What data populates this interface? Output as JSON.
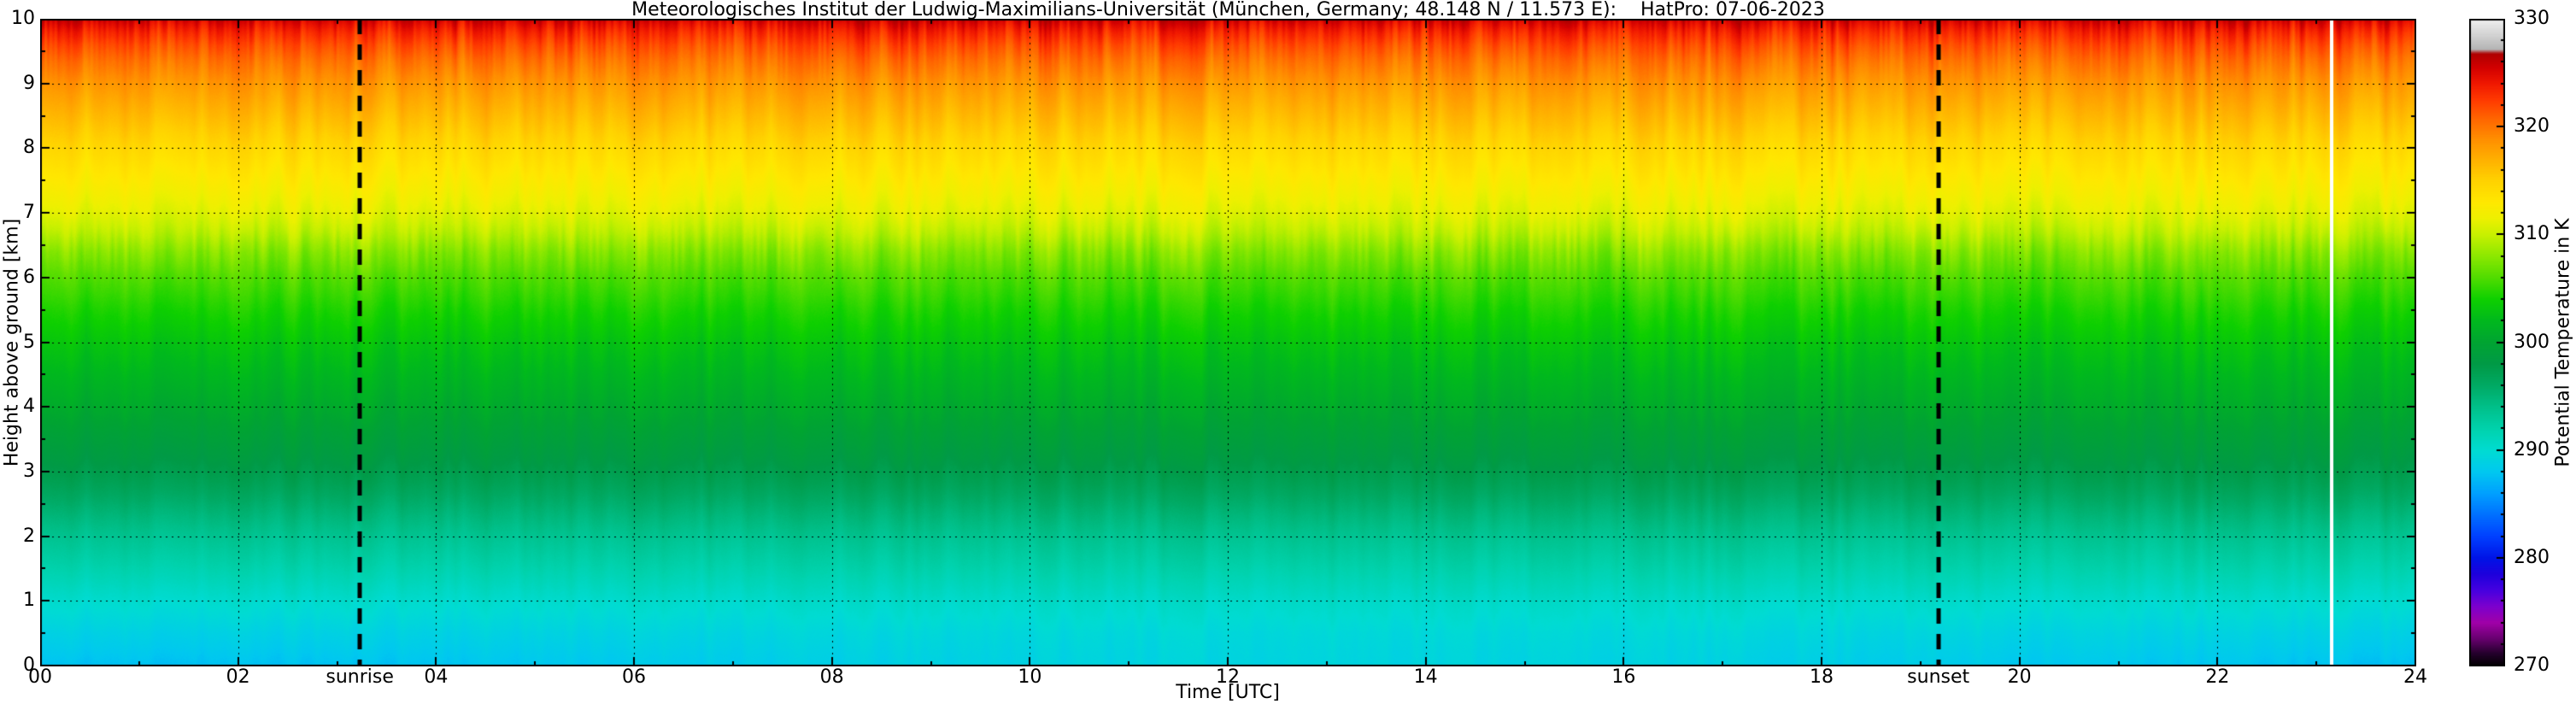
{
  "chart_data": {
    "type": "heatmap",
    "title": "Meteorologisches Institut der Ludwig-Maximilians-Universität (München, Germany; 48.148 N / 11.573 E):    HatPro: 07-06-2023",
    "xlabel": "Time [UTC]",
    "ylabel": "Height above ground [km]",
    "colorbar_label": "Potential Temperature in K",
    "x_range": [
      0,
      24
    ],
    "y_range": [
      0,
      10
    ],
    "x_ticks": [
      0,
      2,
      4,
      6,
      8,
      10,
      12,
      14,
      16,
      18,
      20,
      22,
      24
    ],
    "x_tick_labels": [
      "00",
      "02",
      "04",
      "06",
      "08",
      "10",
      "12",
      "14",
      "16",
      "18",
      "20",
      "22",
      "24"
    ],
    "y_ticks": [
      0,
      1,
      2,
      3,
      4,
      5,
      6,
      7,
      8,
      9,
      10
    ],
    "colorbar_range": [
      270,
      330
    ],
    "colorbar_ticks": [
      270,
      280,
      290,
      300,
      310,
      320,
      330
    ],
    "grid": "dotted",
    "legend_position": "right-colorbar",
    "annotations": {
      "sunrise": {
        "t": 3.23,
        "label": "sunrise"
      },
      "sunset": {
        "t": 19.18,
        "label": "sunset"
      },
      "white_line_t": 23.15
    },
    "profile": [
      [
        0.0,
        288.4
      ],
      [
        0.5,
        289.2
      ],
      [
        1.0,
        290.4
      ],
      [
        1.5,
        292.0
      ],
      [
        2.0,
        293.6
      ],
      [
        2.4,
        295.2
      ],
      [
        2.8,
        296.9
      ],
      [
        3.2,
        298.3
      ],
      [
        3.6,
        299.4
      ],
      [
        4.0,
        300.6
      ],
      [
        4.5,
        301.8
      ],
      [
        5.0,
        303.0
      ],
      [
        5.5,
        304.4
      ],
      [
        6.0,
        306.0
      ],
      [
        6.4,
        307.8
      ],
      [
        6.7,
        309.6
      ],
      [
        7.0,
        311.0
      ],
      [
        7.5,
        312.7
      ],
      [
        8.0,
        314.4
      ],
      [
        8.5,
        316.4
      ],
      [
        9.0,
        318.4
      ],
      [
        9.35,
        320.2
      ],
      [
        9.6,
        321.8
      ],
      [
        9.8,
        323.4
      ],
      [
        9.93,
        324.8
      ],
      [
        10.0,
        325.8
      ]
    ],
    "colormap": [
      [
        270.0,
        "#000000"
      ],
      [
        271.2,
        "#26002e"
      ],
      [
        272.5,
        "#67006e"
      ],
      [
        274.0,
        "#a000a8"
      ],
      [
        275.5,
        "#7d00cd"
      ],
      [
        277.0,
        "#4600e0"
      ],
      [
        278.5,
        "#1e00dc"
      ],
      [
        280.0,
        "#0014e6"
      ],
      [
        282.0,
        "#0040ff"
      ],
      [
        284.0,
        "#0070ff"
      ],
      [
        286.0,
        "#00a0ff"
      ],
      [
        288.0,
        "#00c8f0"
      ],
      [
        290.0,
        "#00dcd2"
      ],
      [
        292.0,
        "#00d2ac"
      ],
      [
        294.0,
        "#00c08a"
      ],
      [
        296.0,
        "#00aa64"
      ],
      [
        298.0,
        "#009a46"
      ],
      [
        300.0,
        "#00a432"
      ],
      [
        302.0,
        "#00b81e"
      ],
      [
        304.0,
        "#0ed000"
      ],
      [
        306.0,
        "#50dc00"
      ],
      [
        308.0,
        "#8ce800"
      ],
      [
        310.0,
        "#c8f000"
      ],
      [
        311.5,
        "#eef000"
      ],
      [
        313.0,
        "#ffe800"
      ],
      [
        315.0,
        "#ffd200"
      ],
      [
        317.0,
        "#ffb000"
      ],
      [
        319.0,
        "#ff8c00"
      ],
      [
        321.0,
        "#ff6000"
      ],
      [
        322.5,
        "#ff3a00"
      ],
      [
        324.0,
        "#f01800"
      ],
      [
        325.5,
        "#d20000"
      ],
      [
        326.8,
        "#ae0000"
      ],
      [
        327.2,
        "#b4b4b4"
      ],
      [
        328.5,
        "#d2d2d2"
      ],
      [
        330.0,
        "#f0f0f0"
      ]
    ]
  }
}
